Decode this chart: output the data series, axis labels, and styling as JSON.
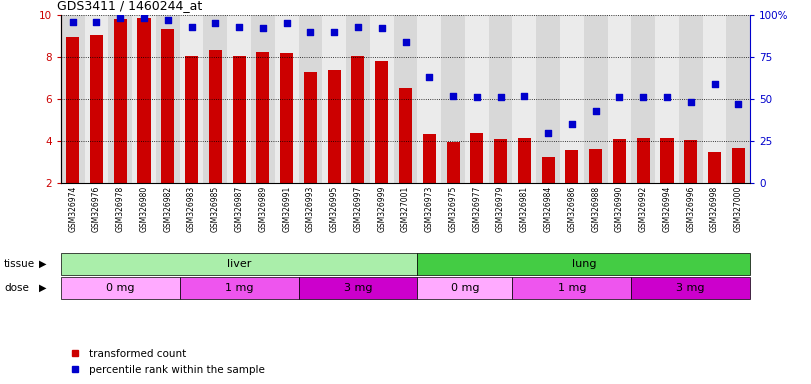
{
  "title": "GDS3411 / 1460244_at",
  "samples": [
    "GSM326974",
    "GSM326976",
    "GSM326978",
    "GSM326980",
    "GSM326982",
    "GSM326983",
    "GSM326985",
    "GSM326987",
    "GSM326989",
    "GSM326991",
    "GSM326993",
    "GSM326995",
    "GSM326997",
    "GSM326999",
    "GSM327001",
    "GSM326973",
    "GSM326975",
    "GSM326977",
    "GSM326979",
    "GSM326981",
    "GSM326984",
    "GSM326986",
    "GSM326988",
    "GSM326990",
    "GSM326992",
    "GSM326994",
    "GSM326996",
    "GSM326998",
    "GSM327000"
  ],
  "bar_values": [
    8.97,
    9.04,
    9.82,
    9.88,
    9.35,
    8.07,
    8.33,
    8.07,
    8.25,
    8.18,
    7.27,
    7.37,
    8.03,
    7.83,
    6.52,
    4.34,
    3.93,
    4.37,
    4.11,
    4.15,
    3.24,
    3.55,
    3.62,
    4.11,
    4.15,
    4.14,
    4.04,
    3.49,
    3.68
  ],
  "percentile_values": [
    96,
    96,
    98,
    98,
    97,
    93,
    95,
    93,
    92,
    95,
    90,
    90,
    93,
    92,
    84,
    63,
    52,
    51,
    51,
    52,
    30,
    35,
    43,
    51,
    51,
    51,
    48,
    59,
    47
  ],
  "bar_color": "#cc0000",
  "dot_color": "#0000cc",
  "ylim_left": [
    2,
    10
  ],
  "ylim_right": [
    0,
    100
  ],
  "yticks_left": [
    2,
    4,
    6,
    8,
    10
  ],
  "yticks_right": [
    0,
    25,
    50,
    75,
    100
  ],
  "tissue_labels": [
    {
      "label": "liver",
      "start": 0,
      "end": 14,
      "color": "#aaeeaa"
    },
    {
      "label": "lung",
      "start": 15,
      "end": 28,
      "color": "#44cc44"
    }
  ],
  "dose_labels": [
    {
      "label": "0 mg",
      "start": 0,
      "end": 4,
      "color": "#ffaaff"
    },
    {
      "label": "1 mg",
      "start": 5,
      "end": 9,
      "color": "#ee55ee"
    },
    {
      "label": "3 mg",
      "start": 10,
      "end": 14,
      "color": "#cc00cc"
    },
    {
      "label": "0 mg",
      "start": 15,
      "end": 18,
      "color": "#ffaaff"
    },
    {
      "label": "1 mg",
      "start": 19,
      "end": 23,
      "color": "#ee55ee"
    },
    {
      "label": "3 mg",
      "start": 24,
      "end": 28,
      "color": "#cc00cc"
    }
  ],
  "legend_items": [
    {
      "label": "transformed count",
      "color": "#cc0000"
    },
    {
      "label": "percentile rank within the sample",
      "color": "#0000cc"
    }
  ],
  "tissue_row_label": "tissue",
  "dose_row_label": "dose"
}
